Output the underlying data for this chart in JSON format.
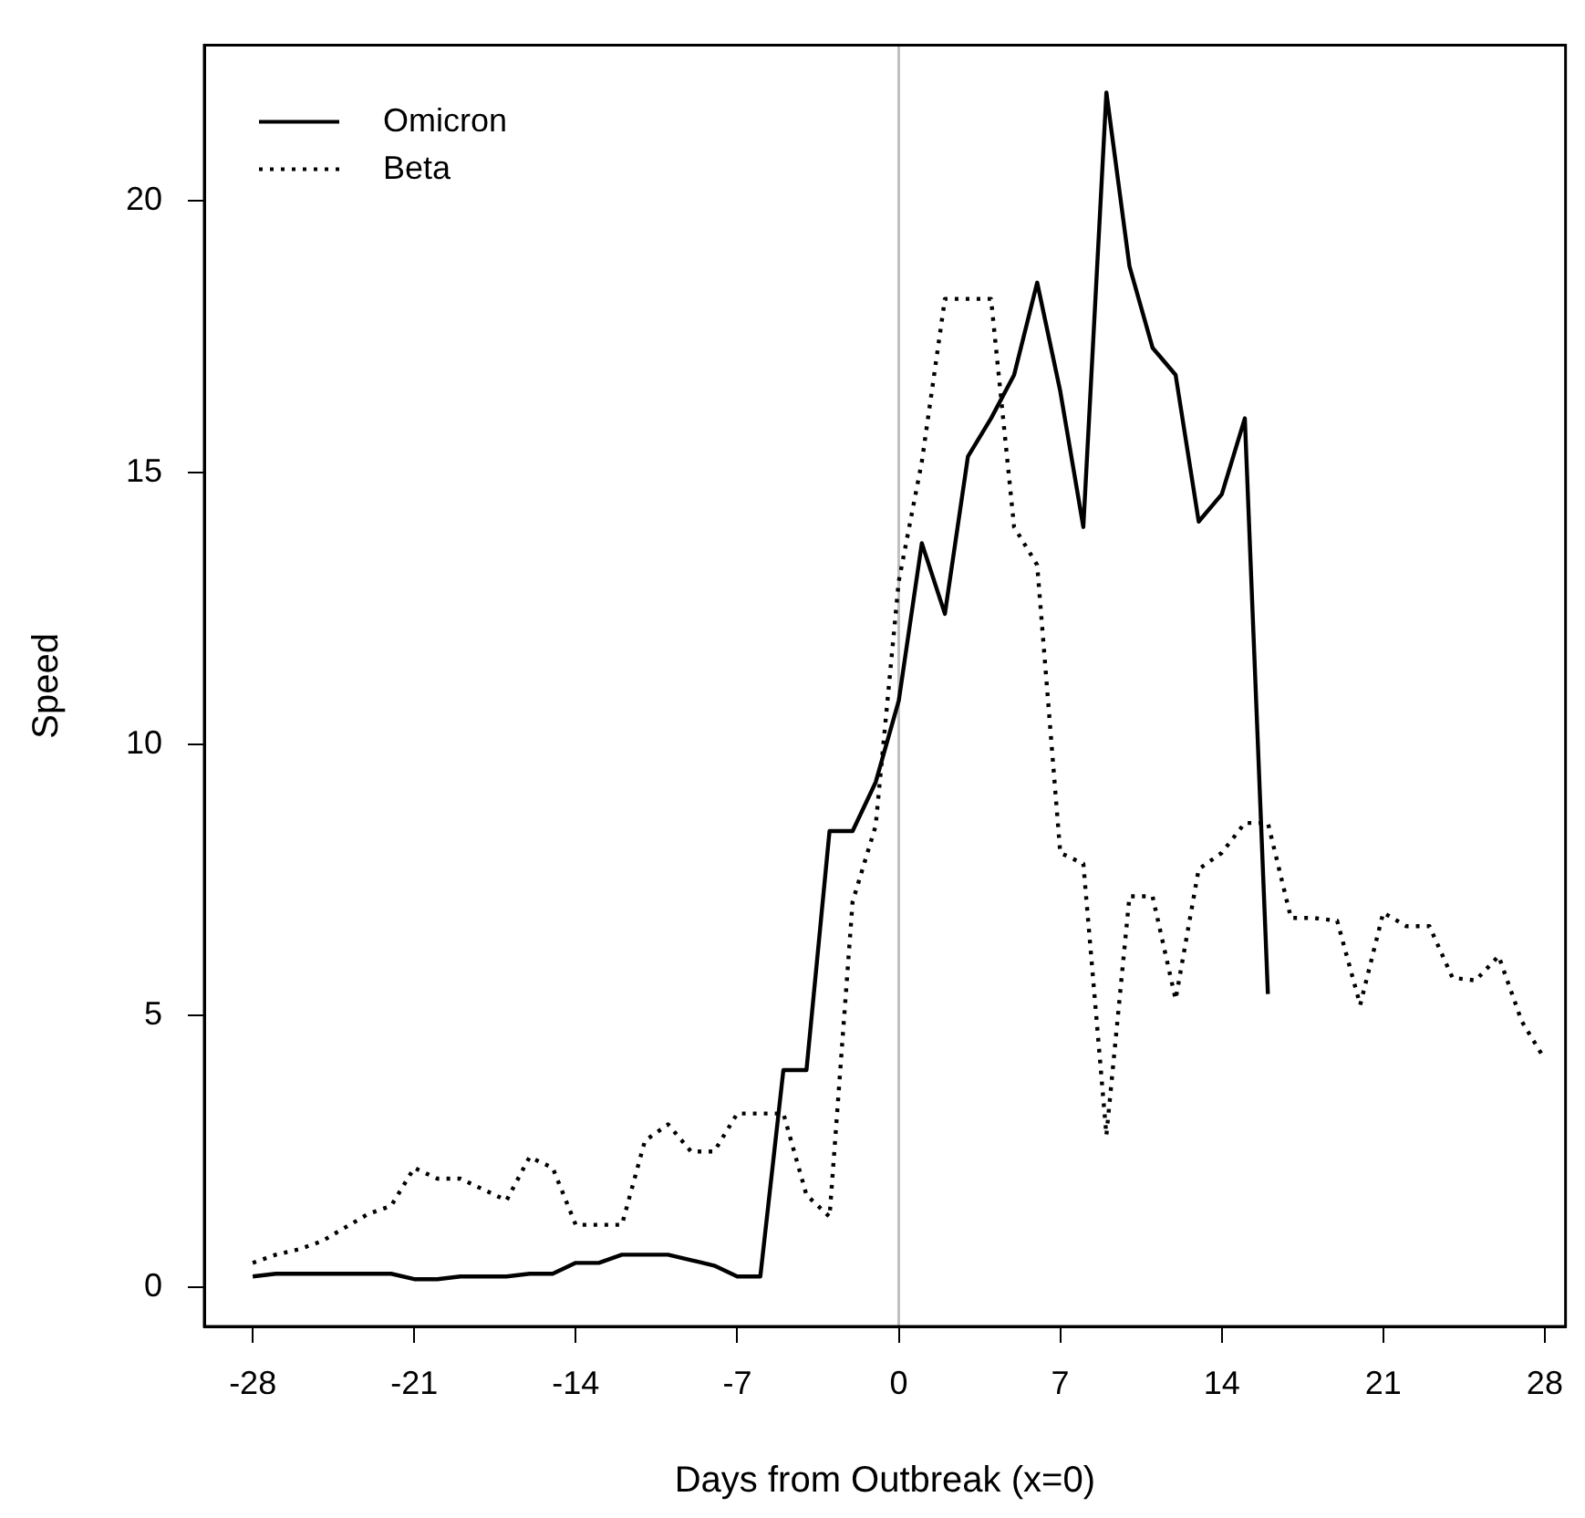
{
  "chart_data": {
    "type": "line",
    "xlabel": "Days from Outbreak (x=0)",
    "ylabel": "Speed",
    "x": [
      -28,
      -27,
      -26,
      -25,
      -24,
      -23,
      -22,
      -21,
      -20,
      -19,
      -18,
      -17,
      -16,
      -15,
      -14,
      -13,
      -12,
      -11,
      -10,
      -9,
      -8,
      -7,
      -6,
      -5,
      -4,
      -3,
      -2,
      -1,
      0,
      1,
      2,
      3,
      4,
      5,
      6,
      7,
      8,
      9,
      10,
      11,
      12,
      13,
      14,
      15,
      16,
      17,
      18,
      19,
      20,
      21,
      22,
      23,
      24,
      25,
      26,
      27,
      28
    ],
    "series": [
      {
        "name": "Omicron",
        "color": "#000000",
        "line_style": "solid",
        "values": [
          0.2,
          0.25,
          0.25,
          0.25,
          0.25,
          0.25,
          0.25,
          0.15,
          0.15,
          0.2,
          0.2,
          0.2,
          0.25,
          0.25,
          0.45,
          0.45,
          0.6,
          0.6,
          0.6,
          0.5,
          0.4,
          0.2,
          0.2,
          4.0,
          4.0,
          8.4,
          8.4,
          9.3,
          10.8,
          13.7,
          12.4,
          15.3,
          16.0,
          16.8,
          18.5,
          16.5,
          14.0,
          22.0,
          18.8,
          17.3,
          16.8,
          14.1,
          14.6,
          16.0,
          5.4,
          null,
          null,
          null,
          null,
          null,
          null,
          null,
          null,
          null,
          null,
          null,
          null
        ]
      },
      {
        "name": "Beta",
        "color": "#000000",
        "line_style": "dotted",
        "values": [
          0.45,
          0.6,
          0.7,
          0.85,
          1.1,
          1.35,
          1.5,
          2.2,
          2.0,
          2.0,
          1.8,
          1.6,
          2.4,
          2.2,
          1.15,
          1.15,
          1.15,
          2.7,
          3.0,
          2.5,
          2.5,
          3.2,
          3.2,
          3.2,
          1.7,
          1.3,
          7.1,
          8.5,
          13.0,
          15.2,
          18.2,
          18.2,
          18.2,
          14.0,
          13.3,
          8.0,
          7.8,
          2.8,
          7.2,
          7.2,
          5.3,
          7.7,
          8.0,
          8.55,
          8.55,
          6.8,
          6.8,
          6.75,
          5.2,
          6.9,
          6.65,
          6.65,
          5.7,
          5.65,
          6.1,
          4.9,
          4.2
        ]
      }
    ],
    "xlim": [
      -30.1,
      28.9
    ],
    "ylim": [
      -0.72,
      22.87
    ],
    "xticks": [
      -28,
      -21,
      -14,
      -7,
      0,
      7,
      14,
      21,
      28
    ],
    "yticks": [
      0,
      5,
      10,
      15,
      20
    ],
    "ref_lines": [
      {
        "axis": "x",
        "value": 0,
        "color": "#c0c0c0"
      }
    ],
    "legend": "top left",
    "grid": false,
    "marker": "none"
  }
}
